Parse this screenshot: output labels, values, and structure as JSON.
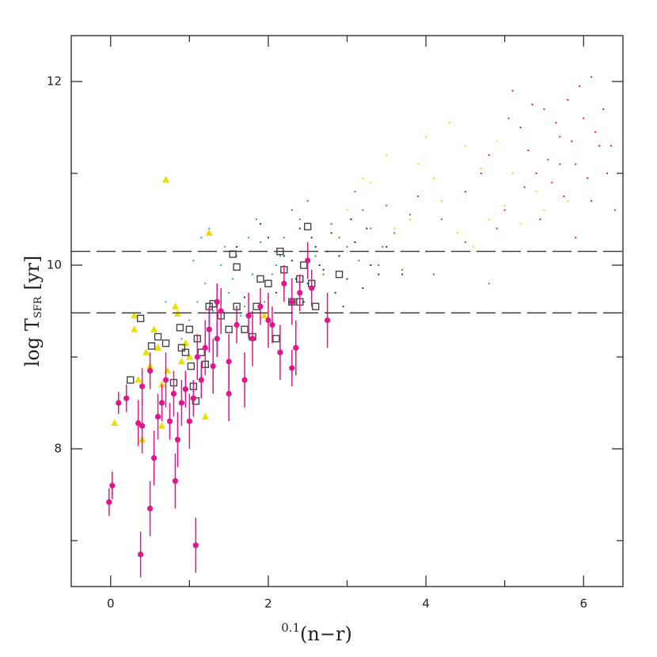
{
  "chart_data": {
    "type": "scatter",
    "x_label": {
      "prefix": "0.1",
      "main": "(n−r)"
    },
    "y_label": {
      "main": "log T",
      "sub": "SFR",
      "unit": "[yr]"
    },
    "xlim": [
      -0.5,
      6.5
    ],
    "ylim": [
      6.5,
      12.5
    ],
    "xticks": [
      0,
      2,
      4,
      6
    ],
    "yticks": [
      8,
      10,
      12
    ],
    "xminor_ticks": [
      1,
      3,
      5
    ],
    "yminor_ticks": [
      7,
      9,
      11
    ],
    "hlines": [
      10.15,
      9.48
    ],
    "series": [
      {
        "marker": "dot",
        "color": "#1c2a8c",
        "x": [
          1.6,
          1.8,
          2.0,
          2.1,
          2.3,
          2.4,
          2.5,
          2.6,
          2.7,
          2.8,
          2.9,
          3.0,
          3.1,
          3.2,
          3.3,
          3.4,
          1.9,
          2.2,
          2.45,
          2.65,
          2.85,
          3.05,
          3.5,
          3.7,
          2.35,
          2.55,
          2.75,
          1.7,
          3.25,
          2.95
        ],
        "y": [
          10.2,
          9.9,
          10.3,
          9.7,
          10.05,
          10.4,
          9.8,
          10.2,
          9.95,
          10.35,
          10.1,
          9.85,
          10.25,
          9.75,
          10.0,
          9.9,
          10.45,
          10.1,
          9.6,
          10.0,
          9.7,
          10.5,
          10.2,
          9.9,
          9.85,
          10.3,
          10.15,
          9.65,
          10.4,
          9.55
        ]
      },
      {
        "marker": "dot",
        "color": "#2aa6e0",
        "x": [
          1.0,
          1.1,
          1.2,
          1.3,
          1.4,
          1.5,
          1.6,
          1.7,
          1.8,
          1.9,
          2.0,
          2.1,
          2.2,
          2.3,
          0.9,
          1.25,
          1.45,
          1.65,
          1.85,
          2.05,
          1.35,
          1.55,
          1.75,
          1.95,
          2.15,
          0.7,
          1.15,
          2.4,
          1.05,
          1.6
        ],
        "y": [
          9.4,
          9.6,
          9.8,
          9.5,
          10.0,
          9.7,
          10.1,
          9.55,
          9.9,
          10.25,
          9.65,
          10.0,
          9.75,
          9.85,
          9.2,
          10.4,
          10.2,
          9.45,
          10.5,
          9.9,
          9.35,
          9.85,
          10.3,
          9.6,
          10.1,
          9.6,
          10.3,
          9.7,
          10.05,
          9.55
        ]
      },
      {
        "marker": "dot",
        "color": "#3a9a30",
        "x": [
          2.2,
          2.4,
          2.6,
          2.8,
          3.0,
          3.2,
          3.4,
          3.6,
          3.8,
          4.0,
          2.5,
          2.7,
          2.9,
          3.1,
          3.3,
          3.5,
          3.7,
          4.2,
          4.5,
          3.9,
          2.3,
          3.15,
          3.45,
          4.8,
          4.1
        ],
        "y": [
          10.3,
          10.5,
          10.1,
          10.45,
          10.2,
          10.6,
          10.0,
          10.35,
          10.55,
          10.15,
          10.7,
          9.9,
          10.3,
          10.8,
          10.4,
          10.65,
          9.95,
          10.5,
          10.25,
          10.75,
          10.6,
          10.05,
          10.2,
          9.8,
          9.9
        ]
      },
      {
        "marker": "dot",
        "color": "#e2e222",
        "x": [
          3.0,
          3.3,
          3.6,
          3.9,
          4.2,
          4.5,
          4.8,
          5.1,
          5.4,
          3.5,
          3.8,
          4.1,
          4.4,
          4.7,
          5.0,
          5.3,
          5.6,
          4.0,
          4.6,
          5.2,
          3.2,
          4.3,
          4.9,
          5.5,
          5.8
        ],
        "y": [
          10.6,
          10.9,
          10.4,
          11.1,
          10.7,
          11.3,
          10.5,
          11.0,
          10.8,
          11.2,
          10.5,
          10.95,
          10.35,
          11.05,
          10.65,
          11.25,
          10.9,
          11.4,
          10.2,
          10.45,
          10.95,
          11.55,
          11.35,
          10.6,
          10.7
        ]
      },
      {
        "marker": "dot",
        "color": "#e02828",
        "x": [
          4.5,
          4.8,
          5.0,
          5.2,
          5.4,
          5.5,
          5.6,
          5.7,
          5.8,
          5.9,
          6.0,
          6.1,
          6.2,
          6.3,
          6.4,
          4.9,
          5.1,
          5.3,
          5.65,
          5.75,
          5.85,
          5.95,
          6.05,
          6.15,
          5.45,
          5.55,
          6.25,
          4.7,
          5.25,
          6.35,
          5.05,
          5.9,
          6.1,
          5.35,
          5.7
        ],
        "y": [
          10.8,
          11.2,
          10.6,
          11.5,
          11.0,
          11.7,
          10.9,
          11.4,
          11.8,
          11.1,
          11.6,
          10.7,
          11.3,
          11.0,
          10.6,
          10.4,
          11.9,
          11.25,
          11.55,
          10.75,
          11.35,
          11.95,
          10.95,
          11.45,
          10.5,
          11.15,
          11.7,
          11.0,
          10.85,
          11.3,
          11.6,
          10.3,
          12.05,
          11.75,
          11.1
        ]
      },
      {
        "marker": "triangle",
        "color": "#e8e000",
        "x": [
          0.7,
          1.25,
          0.3,
          0.3,
          0.35,
          0.45,
          0.5,
          0.55,
          0.6,
          0.65,
          0.72,
          0.85,
          0.9,
          0.95,
          1.2,
          0.05,
          0.4,
          0.65,
          1.0,
          1.95,
          0.82
        ],
        "y": [
          10.93,
          10.35,
          9.45,
          9.3,
          8.75,
          9.05,
          8.9,
          9.3,
          9.1,
          8.7,
          8.85,
          9.47,
          8.95,
          9.15,
          8.35,
          8.28,
          8.1,
          8.25,
          9.0,
          9.45,
          9.55
        ]
      },
      {
        "marker": "square",
        "color": "#444444",
        "x": [
          0.38,
          0.25,
          0.52,
          0.6,
          0.7,
          0.8,
          0.88,
          0.9,
          0.95,
          1.0,
          1.02,
          1.05,
          1.08,
          1.1,
          1.15,
          1.2,
          1.25,
          1.3,
          1.4,
          1.5,
          1.55,
          1.6,
          1.7,
          1.8,
          1.85,
          1.9,
          2.0,
          2.1,
          2.15,
          2.2,
          2.3,
          2.4,
          2.45,
          2.5,
          2.55,
          2.6,
          2.9,
          1.6,
          2.4
        ],
        "y": [
          9.42,
          8.75,
          9.12,
          9.22,
          9.15,
          8.72,
          9.32,
          9.1,
          9.05,
          9.3,
          8.9,
          8.68,
          8.52,
          9.2,
          9.05,
          8.92,
          9.55,
          9.58,
          9.45,
          9.3,
          10.12,
          9.55,
          9.3,
          9.22,
          9.55,
          9.85,
          9.8,
          9.2,
          10.15,
          9.95,
          9.6,
          9.85,
          10.0,
          10.42,
          9.8,
          9.55,
          9.9,
          9.98,
          9.6
        ]
      },
      {
        "marker": "circle",
        "color": "#e0168a",
        "x": [
          -0.02,
          0.02,
          0.1,
          0.2,
          0.35,
          0.38,
          0.4,
          0.4,
          0.5,
          0.5,
          0.55,
          0.6,
          0.65,
          0.7,
          0.75,
          0.8,
          0.82,
          0.85,
          0.9,
          0.95,
          1.0,
          1.05,
          1.08,
          1.1,
          1.15,
          1.2,
          1.25,
          1.3,
          1.35,
          1.4,
          1.5,
          1.5,
          1.6,
          1.7,
          1.75,
          1.8,
          1.9,
          2.0,
          2.05,
          2.15,
          2.2,
          2.3,
          2.35,
          2.4,
          2.5,
          2.55,
          2.75,
          1.35,
          2.3
        ],
        "y": [
          7.42,
          7.6,
          8.5,
          8.55,
          8.28,
          6.85,
          8.25,
          8.68,
          8.85,
          7.35,
          7.9,
          8.35,
          8.5,
          8.75,
          8.3,
          8.6,
          7.65,
          8.1,
          8.5,
          8.65,
          8.3,
          8.55,
          6.95,
          9.0,
          8.75,
          9.1,
          9.3,
          8.9,
          9.2,
          9.5,
          8.95,
          8.6,
          9.35,
          8.75,
          9.45,
          9.2,
          9.55,
          9.4,
          9.35,
          9.05,
          9.8,
          9.6,
          9.1,
          9.7,
          10.05,
          9.75,
          9.4,
          9.6,
          8.88
        ],
        "errors": [
          0.15,
          0.15,
          0.12,
          0.15,
          0.25,
          0.25,
          0.3,
          0.2,
          0.2,
          0.3,
          0.3,
          0.25,
          0.2,
          0.3,
          0.2,
          0.25,
          0.3,
          0.3,
          0.25,
          0.2,
          0.3,
          0.2,
          0.3,
          0.25,
          0.2,
          0.3,
          0.25,
          0.3,
          0.2,
          0.25,
          0.3,
          0.3,
          0.2,
          0.3,
          0.25,
          0.3,
          0.2,
          0.3,
          0.2,
          0.3,
          0.2,
          0.25,
          0.3,
          0.2,
          0.2,
          0.2,
          0.3,
          0.2,
          0.2
        ]
      }
    ]
  }
}
